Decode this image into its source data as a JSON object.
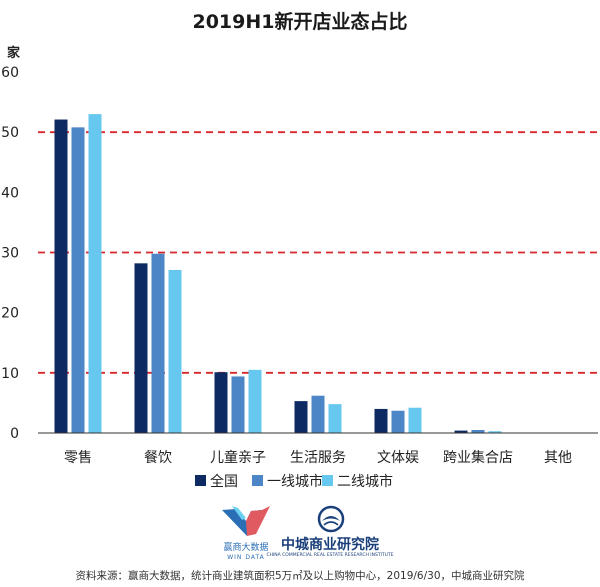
{
  "chart_data": {
    "type": "bar",
    "title": "2019H1新开店业态占比",
    "ylabel": "家",
    "xlabel": "",
    "ylim": [
      0,
      60
    ],
    "yticks": [
      0,
      10,
      20,
      30,
      40,
      50,
      60
    ],
    "reference_lines": [
      10,
      30,
      50
    ],
    "categories": [
      "零售",
      "餐饮",
      "儿童亲子",
      "生活服务",
      "文体娱",
      "跨业集合店",
      "其他"
    ],
    "series": [
      {
        "name": "全国",
        "color": "#0d2a63",
        "values": [
          52.1,
          28.2,
          10.1,
          5.3,
          4.0,
          0.4,
          0.0
        ]
      },
      {
        "name": "一线城市",
        "color": "#4d86c6",
        "values": [
          50.8,
          29.8,
          9.4,
          6.2,
          3.7,
          0.5,
          0.0
        ]
      },
      {
        "name": "二线城市",
        "color": "#66c8ef",
        "values": [
          53.0,
          27.1,
          10.5,
          4.8,
          4.2,
          0.3,
          0.0
        ]
      }
    ],
    "legend_position": "bottom",
    "grid": false
  },
  "logos": {
    "windata_cn": "赢商大数据",
    "windata_en": "WIN DATA",
    "zhongcheng_cn": "中城商业研究院",
    "zhongcheng_en": "CHINA COMMERCIAL REAL ESTATE RESEARCH INSTITUTE"
  },
  "source": "资料来源：赢商大数据，统计商业建筑面积5万㎡及以上购物中心，2019/6/30，中城商业研究院",
  "colors": {
    "reference_line": "#d9262b",
    "axis": "#333333"
  }
}
